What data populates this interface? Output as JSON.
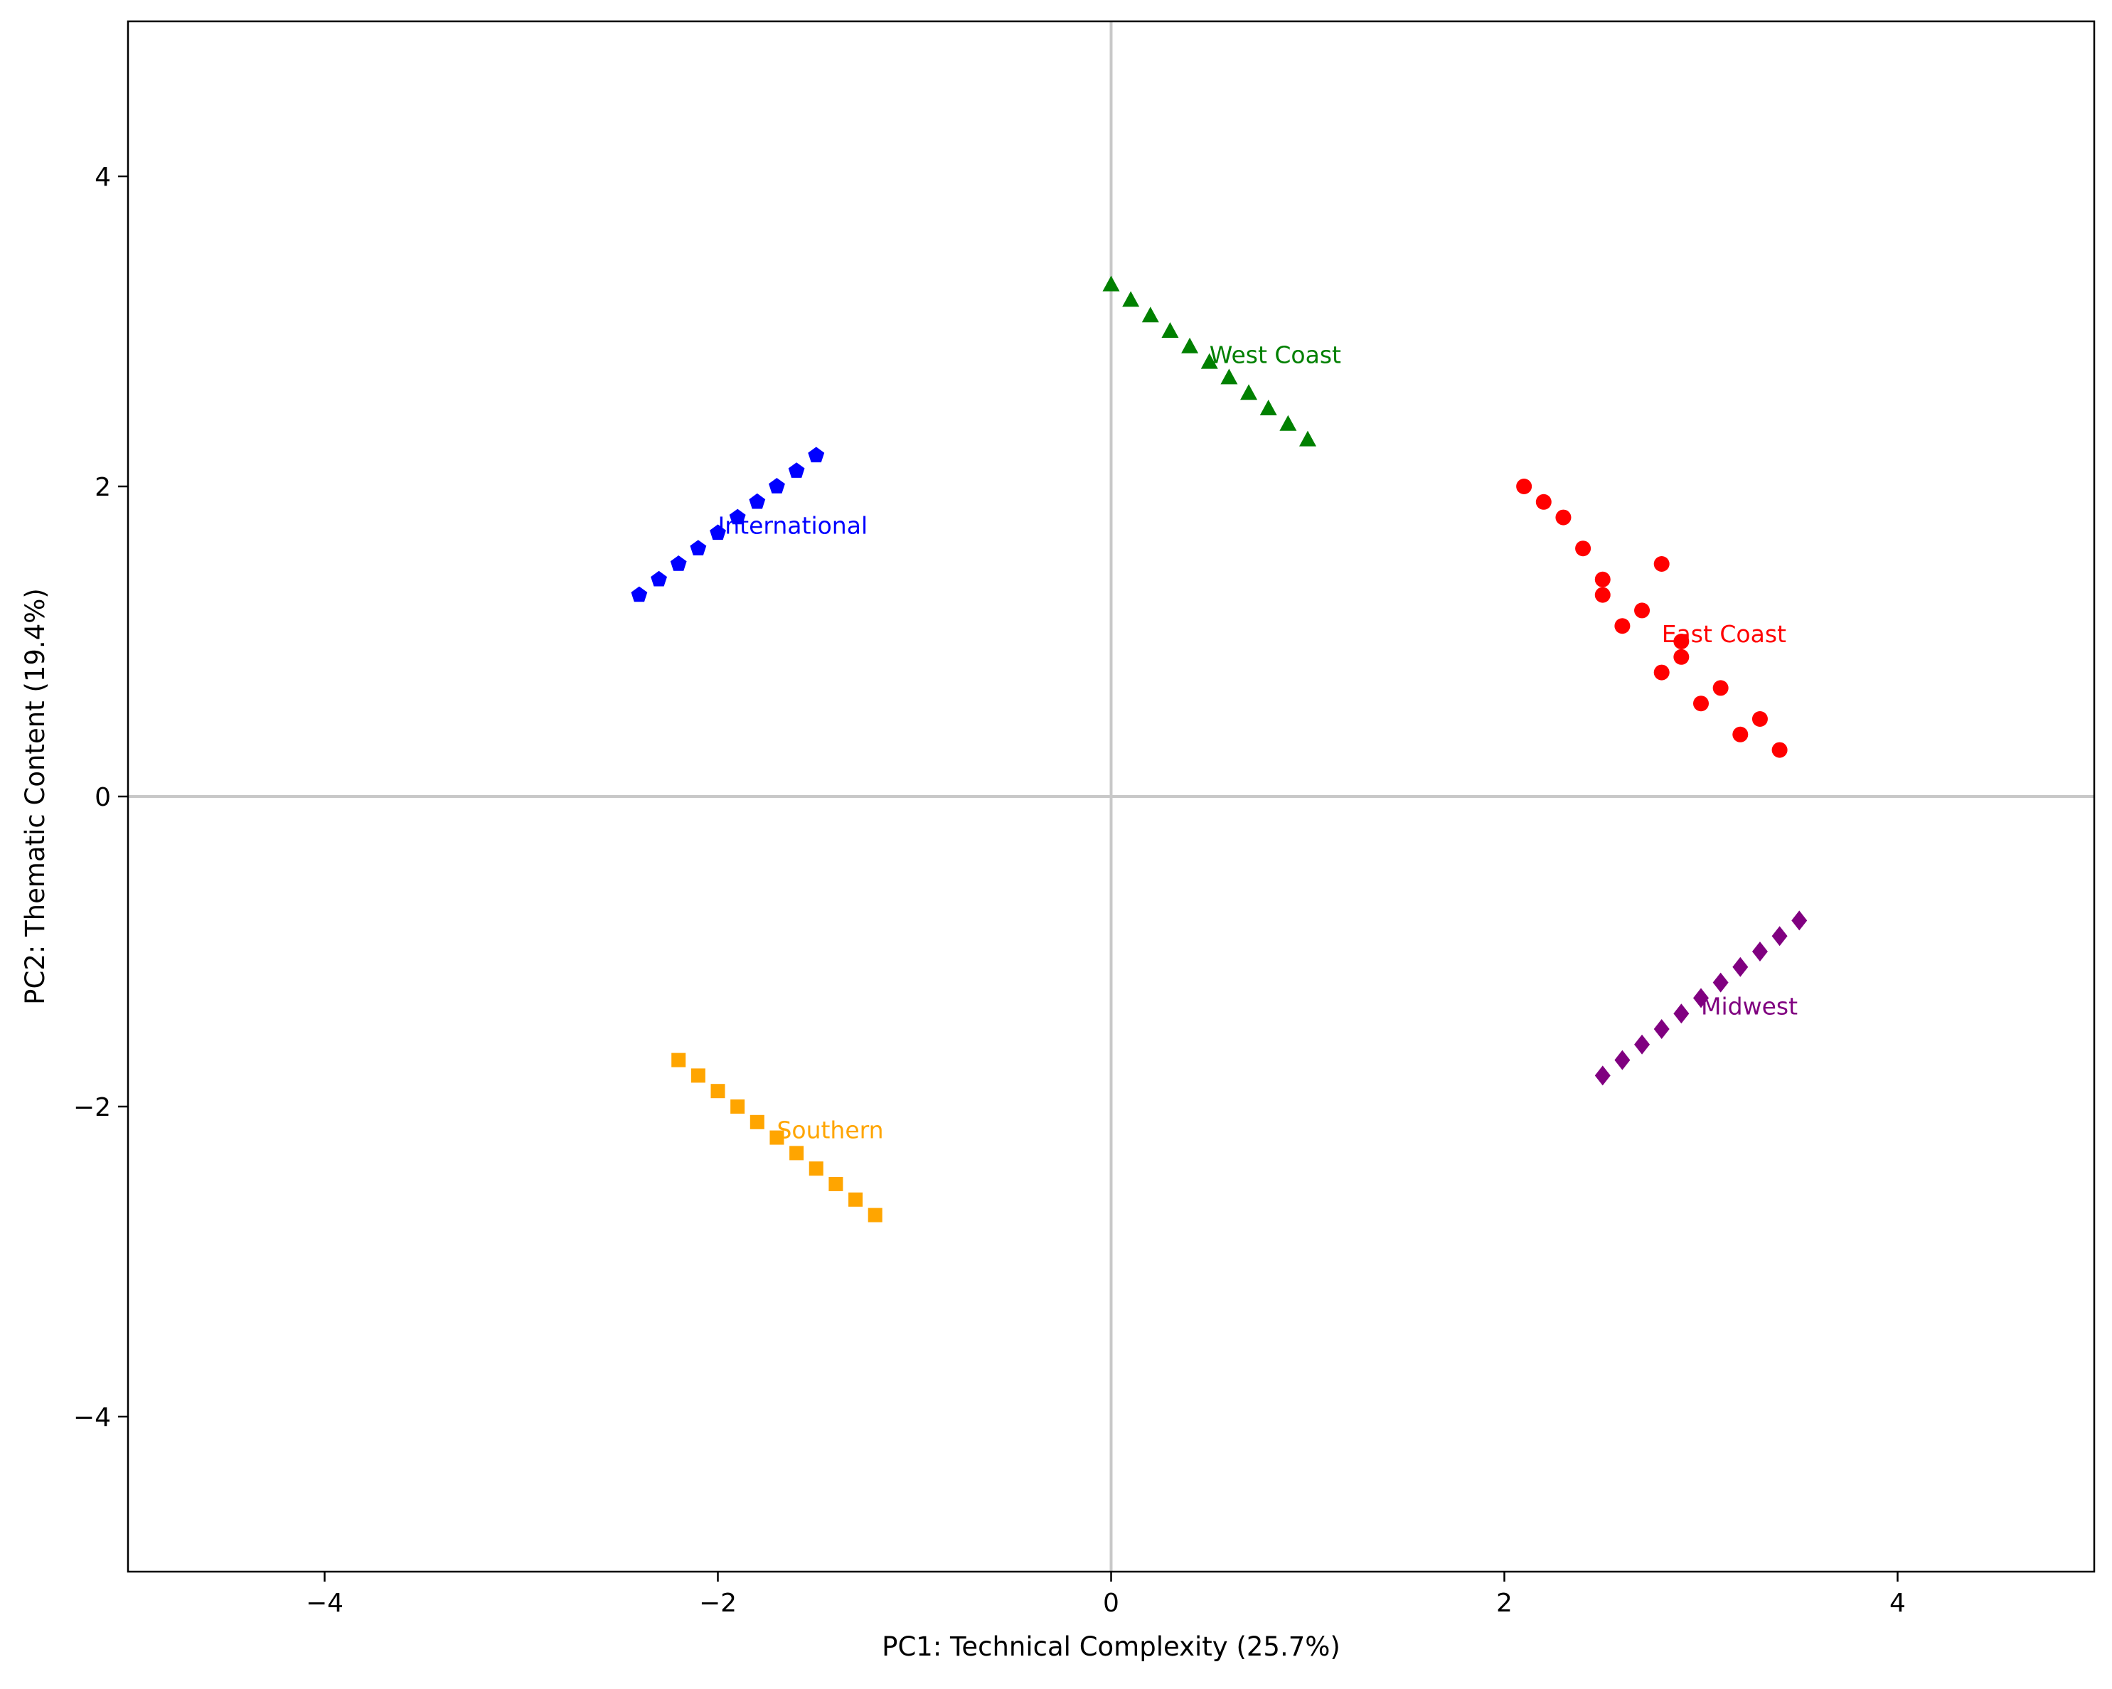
{
  "chart_data": {
    "type": "scatter",
    "title": "",
    "xlabel": "PC1: Technical Complexity (25.7%)",
    "ylabel": "PC2: Thematic Content (19.4%)",
    "xlim": [
      -5,
      5
    ],
    "ylim": [
      -5,
      5
    ],
    "xticks": [
      -4,
      -2,
      0,
      2,
      4
    ],
    "yticks": [
      -4,
      -2,
      0,
      2,
      4
    ],
    "xtick_labels": [
      "−4",
      "−2",
      "0",
      "2",
      "4"
    ],
    "ytick_labels": [
      "−4",
      "−2",
      "0",
      "2",
      "4"
    ],
    "grid": false,
    "reference_lines": {
      "x": 0,
      "y": 0
    },
    "series": [
      {
        "name": "East Coast",
        "color": "#ff0000",
        "marker": "circle",
        "label_position": [
          2.8,
          1.05
        ],
        "points": [
          [
            2.1,
            2.0
          ],
          [
            2.2,
            1.9
          ],
          [
            2.3,
            1.8
          ],
          [
            2.4,
            1.6
          ],
          [
            2.5,
            1.4
          ],
          [
            2.5,
            1.3
          ],
          [
            2.6,
            1.1
          ],
          [
            2.7,
            1.2
          ],
          [
            2.8,
            1.5
          ],
          [
            2.8,
            0.8
          ],
          [
            2.9,
            1.0
          ],
          [
            2.9,
            0.9
          ],
          [
            3.0,
            0.6
          ],
          [
            3.1,
            0.7
          ],
          [
            3.2,
            0.4
          ],
          [
            3.3,
            0.5
          ],
          [
            3.4,
            0.3
          ]
        ]
      },
      {
        "name": "West Coast",
        "color": "#008000",
        "marker": "triangle",
        "label_position": [
          0.5,
          2.85
        ],
        "points": [
          [
            0.0,
            3.3
          ],
          [
            0.1,
            3.2
          ],
          [
            0.2,
            3.1
          ],
          [
            0.3,
            3.0
          ],
          [
            0.4,
            2.9
          ],
          [
            0.5,
            2.8
          ],
          [
            0.6,
            2.7
          ],
          [
            0.7,
            2.6
          ],
          [
            0.8,
            2.5
          ],
          [
            0.9,
            2.4
          ],
          [
            1.0,
            2.3
          ]
        ]
      },
      {
        "name": "Midwest",
        "color": "#800080",
        "marker": "diamond",
        "label_position": [
          3.0,
          -1.35
        ],
        "points": [
          [
            2.5,
            -1.8
          ],
          [
            2.6,
            -1.7
          ],
          [
            2.7,
            -1.6
          ],
          [
            2.8,
            -1.5
          ],
          [
            2.9,
            -1.4
          ],
          [
            3.0,
            -1.3
          ],
          [
            3.1,
            -1.2
          ],
          [
            3.2,
            -1.1
          ],
          [
            3.3,
            -1.0
          ],
          [
            3.4,
            -0.9
          ],
          [
            3.5,
            -0.8
          ]
        ]
      },
      {
        "name": "Southern",
        "color": "#ffa500",
        "marker": "square",
        "label_position": [
          -1.7,
          -2.15
        ],
        "points": [
          [
            -2.2,
            -1.7
          ],
          [
            -2.1,
            -1.8
          ],
          [
            -2.0,
            -1.9
          ],
          [
            -1.9,
            -2.0
          ],
          [
            -1.8,
            -2.1
          ],
          [
            -1.7,
            -2.2
          ],
          [
            -1.6,
            -2.3
          ],
          [
            -1.5,
            -2.4
          ],
          [
            -1.4,
            -2.5
          ],
          [
            -1.3,
            -2.6
          ],
          [
            -1.2,
            -2.7
          ]
        ]
      },
      {
        "name": "International",
        "color": "#0000ff",
        "marker": "pentagon",
        "label_position": [
          -2.0,
          1.75
        ],
        "points": [
          [
            -2.4,
            1.3
          ],
          [
            -2.3,
            1.4
          ],
          [
            -2.2,
            1.5
          ],
          [
            -2.1,
            1.6
          ],
          [
            -2.0,
            1.7
          ],
          [
            -1.9,
            1.8
          ],
          [
            -1.8,
            1.9
          ],
          [
            -1.7,
            2.0
          ],
          [
            -1.6,
            2.1
          ],
          [
            -1.5,
            2.2
          ]
        ]
      }
    ]
  }
}
